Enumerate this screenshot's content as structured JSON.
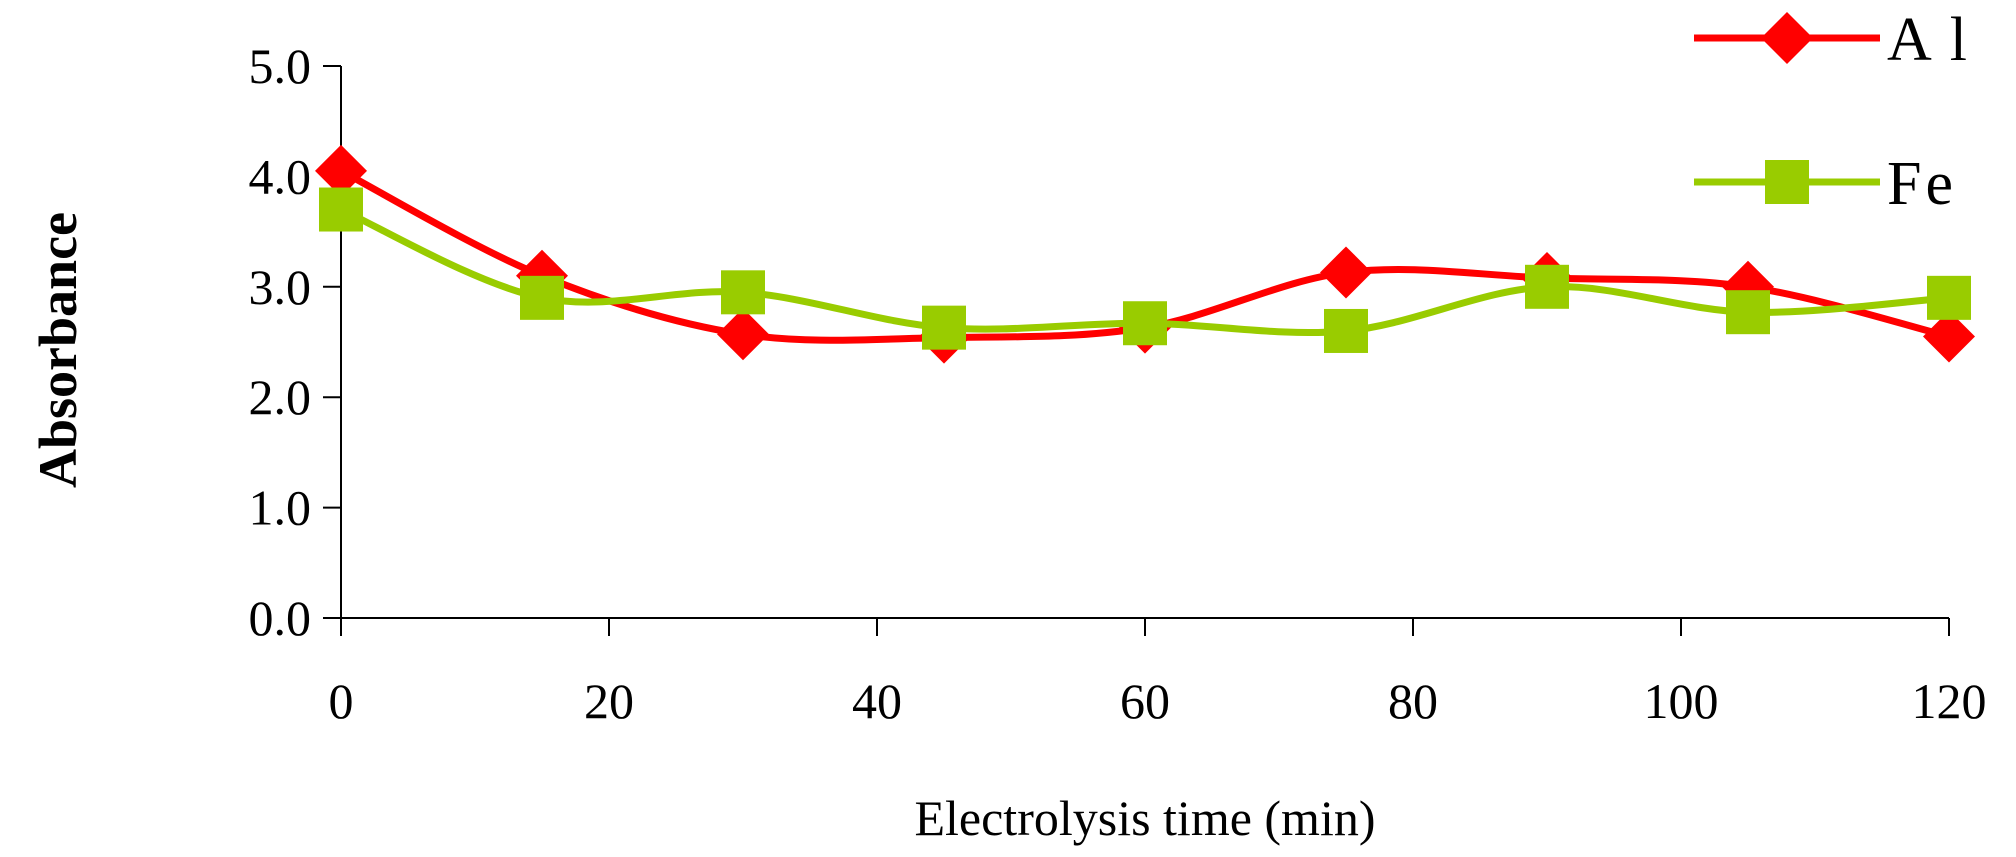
{
  "chart_data": {
    "type": "line",
    "title": "",
    "xlabel": "Electrolysis time (min)",
    "ylabel": "Absorbance",
    "x": [
      0,
      15,
      30,
      45,
      60,
      75,
      90,
      105,
      120
    ],
    "xlim": [
      0,
      120
    ],
    "xticks": [
      0,
      20,
      40,
      60,
      80,
      100,
      120
    ],
    "xtick_labels": [
      "0",
      "20",
      "40",
      "60",
      "80",
      "100",
      "120"
    ],
    "ylim": [
      0,
      5
    ],
    "yticks": [
      0,
      1,
      2,
      3,
      4,
      5
    ],
    "ytick_labels": [
      "0.0",
      "1.0",
      "2.0",
      "3.0",
      "4.0",
      "5.0"
    ],
    "grid": false,
    "legend_position": "top-right",
    "series": [
      {
        "name": "Al",
        "color": "#ff0000",
        "marker": "diamond",
        "values": [
          4.05,
          3.1,
          2.57,
          2.54,
          2.63,
          3.13,
          3.08,
          3.0,
          2.55
        ]
      },
      {
        "name": "Fe",
        "color": "#99cc00",
        "marker": "square",
        "values": [
          3.7,
          2.9,
          2.95,
          2.63,
          2.67,
          2.6,
          3.0,
          2.77,
          2.9
        ]
      }
    ]
  }
}
